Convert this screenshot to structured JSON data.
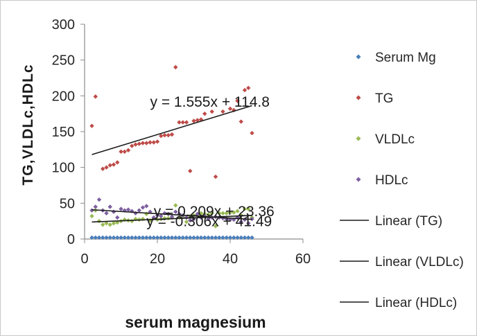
{
  "chart_data": {
    "type": "scatter",
    "xlabel": "serum magnesium",
    "ylabel": "TG,VLDLc,HDLc",
    "xlim": [
      0,
      60
    ],
    "ylim": [
      0,
      300
    ],
    "x_ticks": [
      "0",
      "20",
      "40",
      "60"
    ],
    "y_ticks": [
      "0",
      "50",
      "100",
      "150",
      "200",
      "250",
      "300"
    ],
    "grid": false,
    "legend_position": "right",
    "series": [
      {
        "name": "Serum Mg",
        "color": "#4a7ebb",
        "marker": "diamond",
        "x": [
          2,
          3,
          4,
          5,
          6,
          7,
          8,
          9,
          10,
          11,
          12,
          13,
          14,
          15,
          16,
          17,
          18,
          19,
          20,
          21,
          22,
          23,
          24,
          25,
          26,
          27,
          28,
          29,
          30,
          31,
          32,
          33,
          34,
          35,
          36,
          37,
          38,
          39,
          40,
          41,
          42,
          43,
          44,
          45,
          46
        ],
        "y": [
          2,
          2,
          2,
          2,
          2,
          2,
          2,
          2,
          2,
          2,
          2,
          2,
          2,
          2,
          2,
          2,
          2,
          2,
          2,
          2,
          2,
          2,
          2,
          2,
          2,
          2,
          2,
          2,
          2,
          2,
          2,
          2,
          2,
          2,
          2,
          2,
          2,
          2,
          2,
          2,
          2,
          2,
          2,
          2,
          2
        ]
      },
      {
        "name": "TG",
        "color": "#be4b48",
        "marker": "diamond",
        "x": [
          2,
          3,
          5,
          6,
          7,
          8,
          9,
          10,
          11,
          12,
          13,
          14,
          15,
          16,
          17,
          18,
          19,
          20,
          21,
          22,
          23,
          24,
          25,
          26,
          27,
          28,
          29,
          30,
          31,
          32,
          33,
          35,
          36,
          38,
          40,
          41,
          42,
          43,
          44,
          45,
          46
        ],
        "y": [
          158,
          199,
          98,
          100,
          103,
          104,
          107,
          122,
          122,
          124,
          130,
          132,
          133,
          134,
          134,
          135,
          135,
          136,
          144,
          145,
          145,
          146,
          240,
          163,
          163,
          163,
          95,
          165,
          166,
          167,
          175,
          178,
          87,
          178,
          182,
          180,
          193,
          164,
          208,
          211,
          148
        ]
      },
      {
        "name": "VLDLc",
        "color": "#98b954",
        "marker": "diamond",
        "x": [
          2,
          3,
          4,
          5,
          6,
          7,
          8,
          9,
          10,
          11,
          12,
          13,
          14,
          15,
          16,
          17,
          18,
          19,
          20,
          21,
          22,
          23,
          24,
          25,
          26,
          27,
          28,
          29,
          30,
          31,
          32,
          33,
          34,
          35,
          36,
          37,
          38,
          39,
          40,
          41,
          42,
          43,
          44,
          45,
          46
        ],
        "y": [
          32,
          40,
          25,
          20,
          22,
          20,
          22,
          23,
          25,
          27,
          26,
          25,
          28,
          27,
          28,
          35,
          26,
          29,
          27,
          28,
          29,
          29,
          30,
          47,
          30,
          31,
          24,
          32,
          33,
          33,
          36,
          35,
          34,
          36,
          18,
          36,
          36,
          36,
          37,
          37,
          39,
          33,
          42,
          42,
          30
        ]
      },
      {
        "name": "HDLc",
        "color": "#7d60a0",
        "marker": "diamond",
        "x": [
          2,
          3,
          4,
          5,
          6,
          7,
          8,
          9,
          10,
          11,
          12,
          13,
          14,
          15,
          16,
          17,
          18,
          19,
          20,
          21,
          22,
          23,
          24,
          25,
          26,
          27,
          28,
          29,
          30,
          31,
          32,
          33,
          34,
          35,
          36,
          37,
          38,
          39,
          40,
          41,
          42,
          43,
          44,
          45,
          46
        ],
        "y": [
          40,
          45,
          55,
          40,
          36,
          45,
          38,
          30,
          42,
          40,
          41,
          39,
          36,
          40,
          44,
          46,
          38,
          30,
          33,
          32,
          36,
          35,
          31,
          38,
          35,
          33,
          30,
          26,
          28,
          35,
          30,
          32,
          28,
          30,
          31,
          30,
          29,
          28,
          27,
          27,
          30,
          24,
          27,
          22,
          28
        ]
      }
    ],
    "trendlines": [
      {
        "name": "Linear (TG)",
        "slope": 1.555,
        "intercept": 114.8,
        "x_range": [
          2,
          46
        ],
        "label": "y = 1.555x + 114.8",
        "label_at": [
          18,
          185
        ]
      },
      {
        "name": "Linear (VLDLc)",
        "slope": 0.209,
        "intercept": 23.36,
        "x_range": [
          2,
          46
        ],
        "label": "y = 0.209x + 23.36",
        "label_at": [
          19,
          32
        ]
      },
      {
        "name": "Linear (HDLc)",
        "slope": -0.306,
        "intercept": 41.49,
        "x_range": [
          2,
          46
        ],
        "label": "y = -0.306x + 41.49",
        "label_at": [
          17,
          18
        ]
      }
    ]
  }
}
